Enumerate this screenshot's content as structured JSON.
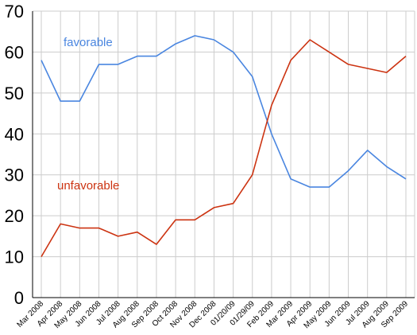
{
  "chart_data": {
    "type": "line",
    "title": "",
    "xlabel": "",
    "ylabel": "",
    "ylim": [
      0,
      70
    ],
    "yticks": [
      0,
      10,
      20,
      30,
      40,
      50,
      60,
      70
    ],
    "grid": "horizontal",
    "categories": [
      "Mar 2008",
      "Apr 2008",
      "May 2008",
      "Jun 2008",
      "Jul 2008",
      "Aug 2008",
      "Sep 2008",
      "Oct 2008",
      "Nov 2008",
      "Dec 2008",
      "01/20/09",
      "01/29/09",
      "Feb 2009",
      "Mar 2009",
      "Apr 2009",
      "May 2009",
      "Jun 2009",
      "Jul 2009",
      "Aug 2009",
      "Sep 2009"
    ],
    "series": [
      {
        "name": "favorable",
        "color": "#4a86e0",
        "values": [
          58,
          48,
          48,
          57,
          57,
          59,
          59,
          62,
          64,
          63,
          60,
          54,
          40,
          29,
          27,
          27,
          31,
          36,
          32,
          29
        ]
      },
      {
        "name": "unfavorable",
        "color": "#cc3311",
        "values": [
          10,
          18,
          17,
          17,
          15,
          16,
          13,
          19,
          19,
          22,
          23,
          30,
          47,
          58,
          63,
          60,
          57,
          56,
          55,
          59
        ]
      }
    ]
  }
}
